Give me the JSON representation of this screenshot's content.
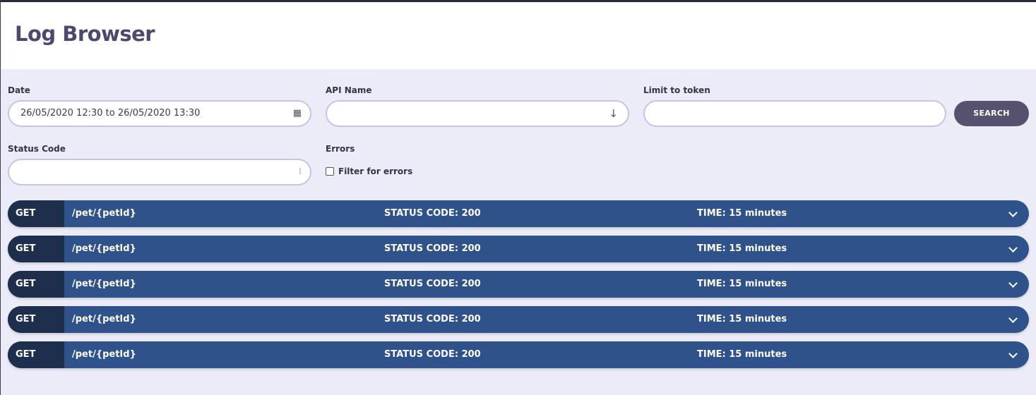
{
  "header": {
    "title": "Log Browser"
  },
  "filters": {
    "date": {
      "label": "Date",
      "value": "26/05/2020 12:30 to 26/05/2020 13:30",
      "icon": "calendar-icon"
    },
    "api_name": {
      "label": "API Name",
      "value": "",
      "icon": "arrow-down-icon"
    },
    "token": {
      "label": "Limit to token",
      "value": ""
    },
    "search_label": "SEARCH",
    "status_code": {
      "label": "Status Code",
      "value": ""
    },
    "errors": {
      "label": "Errors",
      "checkbox_label": "Filter for errors",
      "checked": false
    }
  },
  "logs": [
    {
      "method": "GET",
      "path": "/pet/{petId}",
      "status": "STATUS CODE: 200",
      "time": "TIME: 15 minutes"
    },
    {
      "method": "GET",
      "path": "/pet/{petId}",
      "status": "STATUS CODE: 200",
      "time": "TIME: 15 minutes"
    },
    {
      "method": "GET",
      "path": "/pet/{petId}",
      "status": "STATUS CODE: 200",
      "time": "TIME: 15 minutes"
    },
    {
      "method": "GET",
      "path": "/pet/{petId}",
      "status": "STATUS CODE: 200",
      "time": "TIME: 15 minutes"
    },
    {
      "method": "GET",
      "path": "/pet/{petId}",
      "status": "STATUS CODE: 200",
      "time": "TIME: 15 minutes"
    }
  ]
}
